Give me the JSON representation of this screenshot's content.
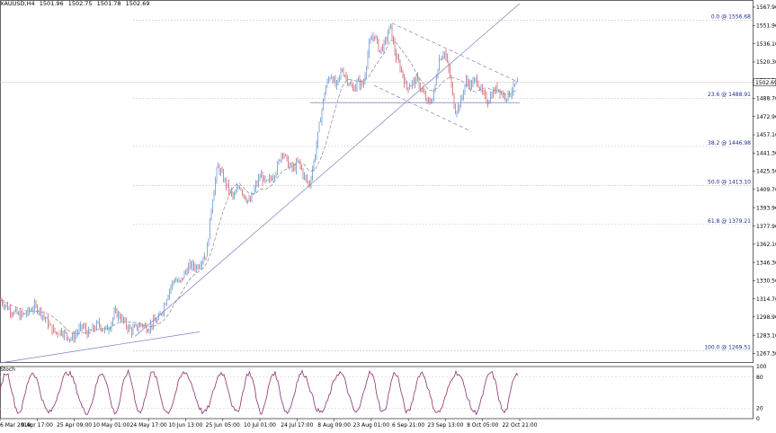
{
  "header": {
    "symbol": "XAUUSD,H4",
    "open": "1501.96",
    "high": "1502.75",
    "low": "1501.78",
    "close": "1502.69"
  },
  "colors": {
    "background": "#ffffff",
    "grid": "#b0b0b0",
    "bull_candle": "#7aa4d8",
    "bear_candle": "#d9777e",
    "moving_average": "#8a8a8a",
    "trendline": "#7b7fc4",
    "fib_text": "#1f2d8a",
    "stochastic": "#8e2f6f"
  },
  "chart_data": [
    {
      "type": "line",
      "title": "XAUUSD,H4",
      "subtype": "candlestick",
      "ylim": [
        1259,
        1571
      ],
      "y_ticks": [
        "1567.90",
        "1551.90",
        "1536.10",
        "1520.30",
        "1504.50",
        "1488.70",
        "1472.90",
        "1457.10",
        "1441.30",
        "1425.50",
        "1409.70",
        "1393.90",
        "1377.90",
        "1362.10",
        "1346.30",
        "1330.50",
        "1314.70",
        "1298.90",
        "1283.10",
        "1267.30"
      ],
      "x_ticks": [
        "6 Mar 2019",
        "9 Apr 17:00",
        "25 Apr 09:00",
        "10 May 01:00",
        "24 May 17:00",
        "10 Jun 13:00",
        "25 Jun 05:00",
        "10 Jul 01:00",
        "24 Jul 17:00",
        "8 Aug 09:00",
        "23 Aug 01:00",
        "6 Sep 21:00",
        "23 Sep 13:00",
        "8 Oct 05:00",
        "22 Oct 21:00"
      ],
      "current_price": "1502.69",
      "price_path": [
        [
          0,
          1314
        ],
        [
          5,
          1310
        ],
        [
          10,
          1306
        ],
        [
          15,
          1303
        ],
        [
          22,
          1300
        ],
        [
          30,
          1302
        ],
        [
          38,
          1308
        ],
        [
          44,
          1305
        ],
        [
          50,
          1298
        ],
        [
          56,
          1290
        ],
        [
          62,
          1285
        ],
        [
          68,
          1287
        ],
        [
          74,
          1283
        ],
        [
          80,
          1280
        ],
        [
          86,
          1286
        ],
        [
          92,
          1291
        ],
        [
          98,
          1284
        ],
        [
          104,
          1289
        ],
        [
          110,
          1293
        ],
        [
          116,
          1287
        ],
        [
          122,
          1291
        ],
        [
          128,
          1303
        ],
        [
          134,
          1299
        ],
        [
          140,
          1292
        ],
        [
          146,
          1287
        ],
        [
          152,
          1290
        ],
        [
          158,
          1293
        ],
        [
          164,
          1289
        ],
        [
          170,
          1294
        ],
        [
          176,
          1296
        ],
        [
          182,
          1308
        ],
        [
          188,
          1322
        ],
        [
          194,
          1332
        ],
        [
          200,
          1328
        ],
        [
          206,
          1338
        ],
        [
          212,
          1344
        ],
        [
          218,
          1342
        ],
        [
          224,
          1348
        ],
        [
          230,
          1355
        ],
        [
          236,
          1400
        ],
        [
          242,
          1430
        ],
        [
          248,
          1420
        ],
        [
          254,
          1410
        ],
        [
          260,
          1402
        ],
        [
          266,
          1414
        ],
        [
          272,
          1404
        ],
        [
          278,
          1398
        ],
        [
          284,
          1412
        ],
        [
          290,
          1422
        ],
        [
          296,
          1414
        ],
        [
          302,
          1420
        ],
        [
          308,
          1428
        ],
        [
          314,
          1444
        ],
        [
          320,
          1432
        ],
        [
          326,
          1427
        ],
        [
          332,
          1434
        ],
        [
          338,
          1421
        ],
        [
          344,
          1413
        ],
        [
          350,
          1438
        ],
        [
          356,
          1470
        ],
        [
          362,
          1498
        ],
        [
          368,
          1510
        ],
        [
          374,
          1498
        ],
        [
          380,
          1514
        ],
        [
          386,
          1506
        ],
        [
          392,
          1496
        ],
        [
          398,
          1503
        ],
        [
          404,
          1500
        ],
        [
          410,
          1533
        ],
        [
          416,
          1545
        ],
        [
          422,
          1530
        ],
        [
          428,
          1536
        ],
        [
          434,
          1552
        ],
        [
          440,
          1525
        ],
        [
          446,
          1514
        ],
        [
          452,
          1498
        ],
        [
          458,
          1502
        ],
        [
          464,
          1505
        ],
        [
          470,
          1494
        ],
        [
          476,
          1484
        ],
        [
          482,
          1490
        ],
        [
          488,
          1522
        ],
        [
          494,
          1530
        ],
        [
          500,
          1510
        ],
        [
          506,
          1478
        ],
        [
          512,
          1484
        ],
        [
          518,
          1504
        ],
        [
          524,
          1500
        ],
        [
          530,
          1506
        ],
        [
          536,
          1493
        ],
        [
          542,
          1486
        ],
        [
          548,
          1494
        ],
        [
          554,
          1498
        ],
        [
          560,
          1491
        ],
        [
          566,
          1492
        ],
        [
          572,
          1499
        ],
        [
          576,
          1503
        ]
      ],
      "fibonacci": [
        {
          "label": "0.0 @ 1556.68",
          "price": 1556.68
        },
        {
          "label": "23.6 @ 1488.91",
          "price": 1488.91
        },
        {
          "label": "38.2 @ 1446.98",
          "price": 1446.98
        },
        {
          "label": "50.0 @ 1413.10",
          "price": 1413.1
        },
        {
          "label": "61.8 @ 1379.21",
          "price": 1379.21
        },
        {
          "label": "100.0 @ 1269.51",
          "price": 1269.51
        }
      ],
      "trendlines": [
        {
          "from": [
            0,
            1259
          ],
          "to": [
            222,
            1286
          ]
        },
        {
          "from": [
            150,
            1282
          ],
          "to": [
            578,
            1571
          ]
        },
        {
          "from": [
            345,
            1485
          ],
          "to": [
            578,
            1485
          ]
        },
        {
          "from": [
            436,
            1554
          ],
          "to": [
            576,
            1503
          ]
        },
        {
          "from": [
            416,
            1500
          ],
          "to": [
            524,
            1460
          ]
        }
      ]
    },
    {
      "type": "line",
      "title": "Stoch",
      "ylim": [
        0,
        100
      ],
      "y_ticks": [
        "100",
        "80",
        "20",
        "0"
      ],
      "x_range": [
        0,
        578
      ],
      "period": 9
    }
  ]
}
